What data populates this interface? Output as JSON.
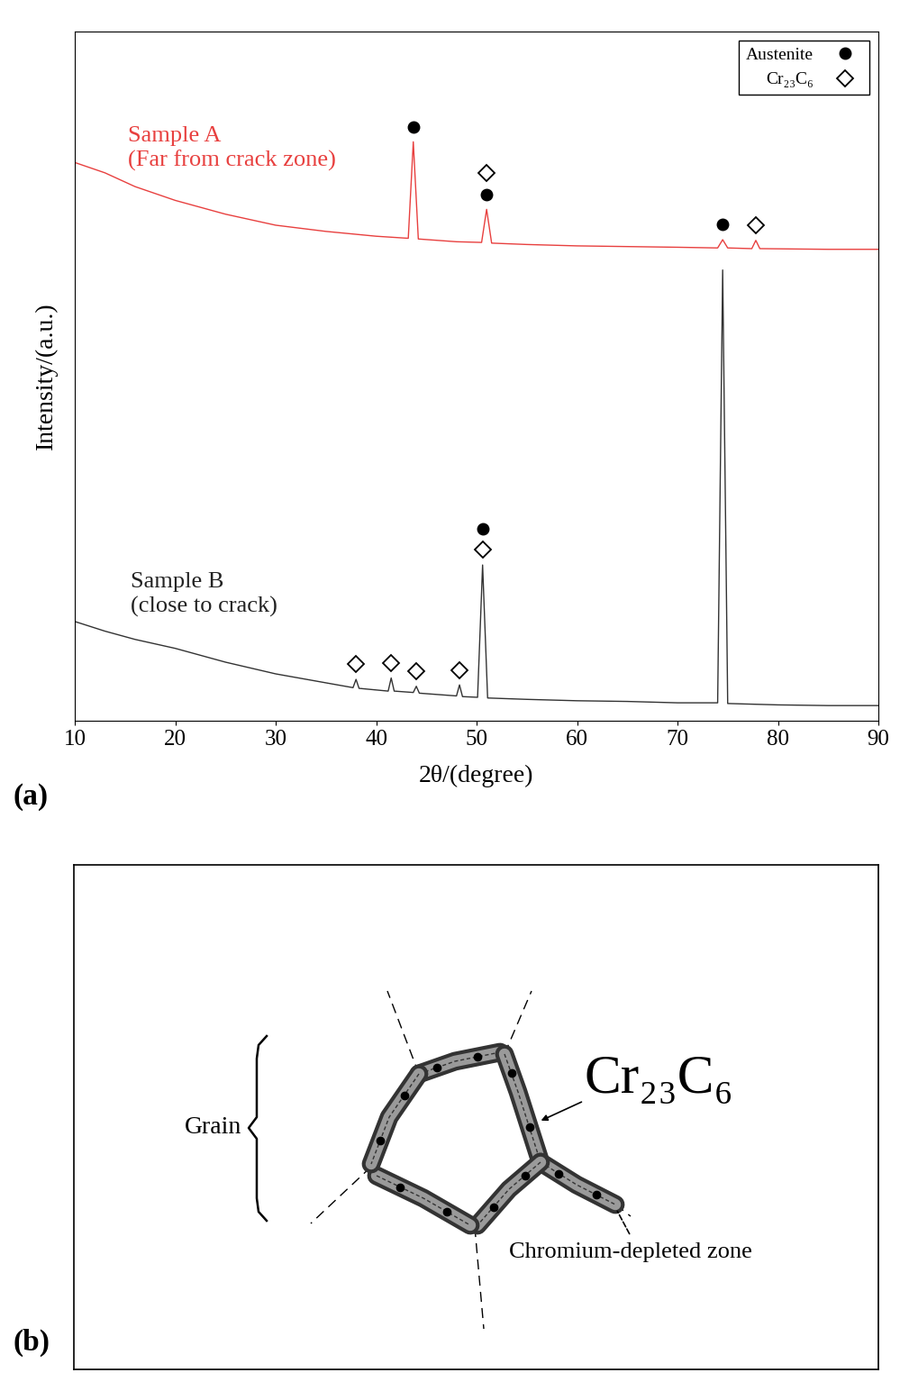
{
  "chart_data": {
    "type": "line",
    "panel": "(a)",
    "x_label": "2θ/(degree)",
    "y_label": "Intensity/(a.u.)",
    "xlim": [
      10,
      90
    ],
    "xticks": [
      10,
      20,
      30,
      40,
      50,
      60,
      70,
      80,
      90
    ],
    "ylim": [
      0,
      100
    ],
    "yticks": [],
    "tick_labels": "x",
    "grid": false,
    "legend": "upper right",
    "phases": [
      {
        "name": "Austenite",
        "marker": "circle"
      },
      {
        "name": "Cr₂₃C₆",
        "marker": "diamond"
      }
    ],
    "series": [
      {
        "color": "#e8403f",
        "x": [
          10,
          13,
          16,
          20,
          25,
          30,
          35,
          40,
          43.2,
          43.7,
          44.2,
          48,
          50.5,
          51,
          51.5,
          55,
          60,
          65,
          70,
          74,
          74.5,
          75,
          77.4,
          77.8,
          78.2,
          85,
          90
        ],
        "values": [
          81,
          79.5,
          77.5,
          75.5,
          73.5,
          71.9,
          71,
          70.3,
          70,
          84,
          69.9,
          69.5,
          69.4,
          74.2,
          69.3,
          69.1,
          68.9,
          68.8,
          68.7,
          68.6,
          69.8,
          68.6,
          68.5,
          69.7,
          68.5,
          68.4,
          68.4
        ],
        "peak_marks": [
          {
            "x": 43.7,
            "y": 84,
            "phases": [
              "Austenite"
            ]
          },
          {
            "x": 51,
            "y": 74.2,
            "phases": [
              "Austenite",
              "Cr₂₃C₆"
            ]
          },
          {
            "x": 74.5,
            "y": 69.8,
            "phases": [
              "Austenite"
            ]
          },
          {
            "x": 77.8,
            "y": 69.7,
            "phases": [
              "Cr₂₃C₆"
            ]
          }
        ]
      },
      {
        "color": "#333333",
        "x": [
          10,
          13,
          16,
          20,
          25,
          30,
          35,
          37.7,
          38,
          38.3,
          41.2,
          41.5,
          41.8,
          43.7,
          44,
          44.3,
          48,
          48.3,
          48.6,
          50.1,
          50.6,
          51.1,
          55,
          60,
          65,
          70,
          74,
          74.5,
          75,
          80,
          85,
          90
        ],
        "values": [
          14.4,
          13,
          11.8,
          10.5,
          8.5,
          6.8,
          5.5,
          4.8,
          6,
          4.7,
          4.3,
          6.2,
          4.3,
          4.1,
          5,
          4,
          3.6,
          5.2,
          3.5,
          3.4,
          22.6,
          3.3,
          3.1,
          2.9,
          2.8,
          2.6,
          2.6,
          65.4,
          2.5,
          2.3,
          2.2,
          2.2
        ],
        "peak_marks": [
          {
            "x": 38,
            "y": 6,
            "phases": [
              "Cr₂₃C₆"
            ]
          },
          {
            "x": 41.5,
            "y": 6.2,
            "phases": [
              "Cr₂₃C₆"
            ]
          },
          {
            "x": 44,
            "y": 5,
            "phases": [
              "Cr₂₃C₆"
            ]
          },
          {
            "x": 48.3,
            "y": 5.2,
            "phases": [
              "Cr₂₃C₆"
            ]
          },
          {
            "x": 50.6,
            "y": 22.6,
            "phases": [
              "Cr₂₃C₆",
              "Austenite"
            ]
          }
        ]
      }
    ],
    "annotations": [
      {
        "text": "Sample A\n(Far from crack zone)",
        "x": 15.3,
        "y": 83,
        "color": "#e8403f"
      },
      {
        "text": "Sample B\n(close to crack)",
        "x": 15.6,
        "y": 18.3,
        "color": "#222222"
      }
    ]
  },
  "diagram": {
    "panel": "(b)",
    "grain": "Grain",
    "carbide": "Cr₂₃C₆",
    "zone": "Chromium-depleted zone"
  }
}
